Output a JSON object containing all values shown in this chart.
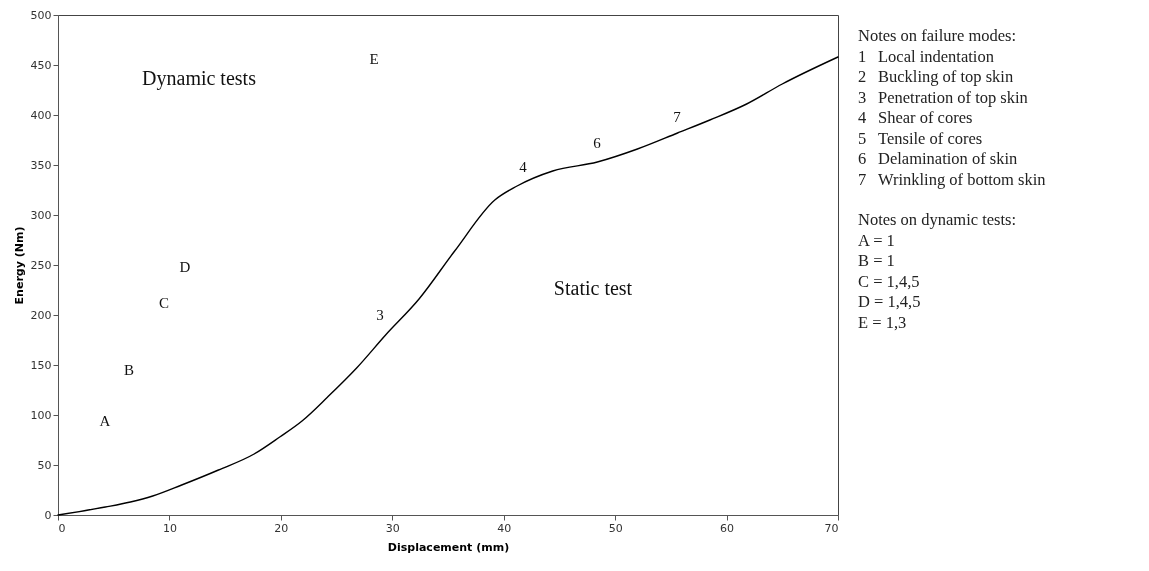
{
  "chart_data": {
    "type": "line",
    "xlabel": "Displacement (mm)",
    "ylabel": "Energy (Nm)",
    "xlim": [
      0,
      70
    ],
    "xticks": [
      0,
      10,
      20,
      30,
      40,
      50,
      60,
      70
    ],
    "ylim": [
      0,
      500
    ],
    "yticks": [
      0,
      50,
      100,
      150,
      200,
      250,
      300,
      350,
      400,
      450,
      500
    ],
    "grid": false,
    "marker": "none",
    "line_style": "solid",
    "series": [
      {
        "color": "#000000",
        "x": [
          0,
          4.25,
          6.5,
          8.5,
          11.1,
          14.4,
          17.6,
          19.9,
          21.9,
          24.2,
          26.8,
          29.4,
          32.4,
          35.6,
          39.2,
          41.2,
          44.4,
          48.4,
          52.0,
          55.6,
          58.5,
          61.8,
          65.0,
          70
        ],
        "values": [
          0,
          8,
          13,
          19,
          30,
          45,
          61,
          78,
          94,
          118,
          147,
          180,
          216,
          264,
          315,
          329,
          344,
          353,
          366,
          382,
          395,
          411,
          431,
          458
        ]
      }
    ],
    "annotations": [
      "Dynamic tests",
      "Static test",
      "A",
      "B",
      "C",
      "D",
      "E",
      "3",
      "4",
      "6",
      "7",
      "Notes on failure modes:",
      "1 Local indentation",
      "2 Buckling of top skin",
      "3 Penetration of top skin",
      "4 Shear of cores",
      "5 Tensile of cores",
      "6 Delamination of skin",
      "7 Wrinkling of bottom skin",
      "Notes on dynamic tests:",
      "A = 1",
      "B = 1",
      "C = 1,4,5",
      "D = 1,4,5",
      "E = 1,3"
    ]
  }
}
